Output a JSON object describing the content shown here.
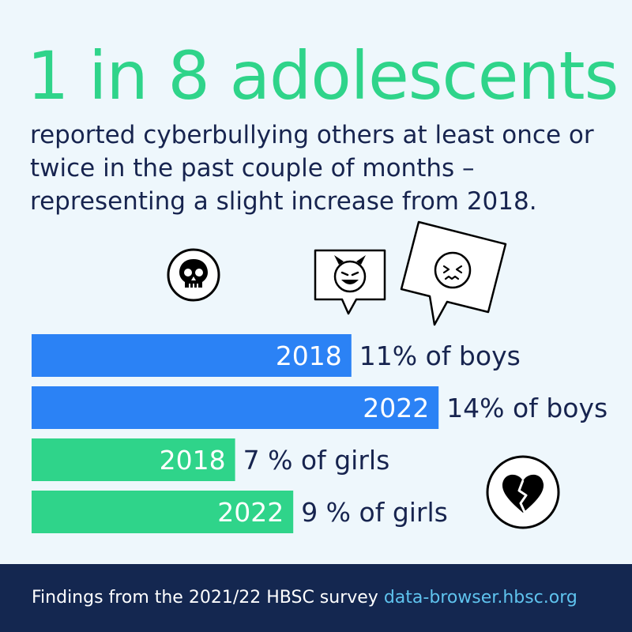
{
  "headline": "1 in 8 adolescents",
  "subtitle": "reported cyberbullying others at least once or twice in the past couple of months – representing a slight increase from 2018.",
  "icons": [
    "skull-icon",
    "devil-speech-bubble-icon",
    "angry-face-speech-bubble-icon",
    "broken-heart-icon"
  ],
  "colors": {
    "boys": "#2b82f5",
    "girls": "#2fd48a",
    "text": "#17244f",
    "headline": "#2fd48a",
    "footer": "#142750",
    "link": "#5fc3ee"
  },
  "chart_data": {
    "type": "bar",
    "orientation": "horizontal",
    "bars": [
      {
        "year": "2018",
        "value": 11,
        "label": "11% of boys",
        "group": "boys"
      },
      {
        "year": "2022",
        "value": 14,
        "label": "14% of boys",
        "group": "boys"
      },
      {
        "year": "2018",
        "value": 7,
        "label": "7 % of girls",
        "group": "girls"
      },
      {
        "year": "2022",
        "value": 9,
        "label": "9 % of girls",
        "group": "girls"
      }
    ]
  },
  "footer": {
    "text": "Findings from the 2021/22 HBSC survey",
    "link": "data-browser.hbsc.org"
  }
}
